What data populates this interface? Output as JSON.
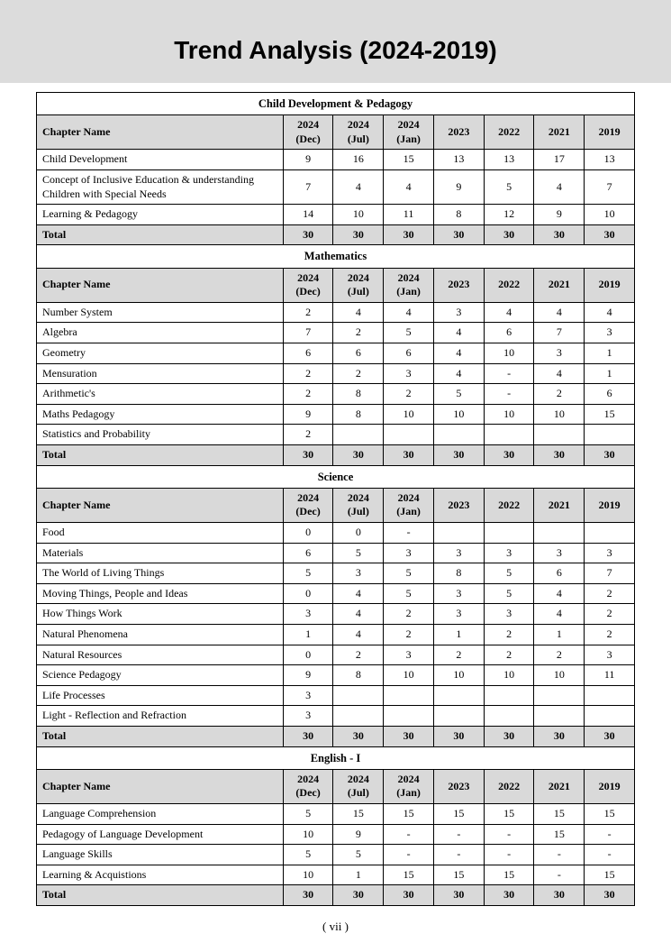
{
  "page_title": "Trend Analysis (2024-2019)",
  "page_number": "( vii )",
  "columns": [
    "Chapter Name",
    "2024 (Dec)",
    "2024 (Jul)",
    "2024 (Jan)",
    "2023",
    "2022",
    "2021",
    "2019"
  ],
  "sections": [
    {
      "title": "Child Development & Pedagogy",
      "rows": [
        {
          "name": "Child Development",
          "vals": [
            "9",
            "16",
            "15",
            "13",
            "13",
            "17",
            "13"
          ]
        },
        {
          "name": "Concept of Inclusive Education & understanding Children with Special Needs",
          "vals": [
            "7",
            "4",
            "4",
            "9",
            "5",
            "4",
            "7"
          ]
        },
        {
          "name": "Learning & Pedagogy",
          "vals": [
            "14",
            "10",
            "11",
            "8",
            "12",
            "9",
            "10"
          ]
        }
      ],
      "total": [
        "30",
        "30",
        "30",
        "30",
        "30",
        "30",
        "30"
      ]
    },
    {
      "title": "Mathematics",
      "rows": [
        {
          "name": "Number System",
          "vals": [
            "2",
            "4",
            "4",
            "3",
            "4",
            "4",
            "4"
          ]
        },
        {
          "name": "Algebra",
          "vals": [
            "7",
            "2",
            "5",
            "4",
            "6",
            "7",
            "3"
          ]
        },
        {
          "name": "Geometry",
          "vals": [
            "6",
            "6",
            "6",
            "4",
            "10",
            "3",
            "1"
          ]
        },
        {
          "name": "Mensuration",
          "vals": [
            "2",
            "2",
            "3",
            "4",
            "-",
            "4",
            "1"
          ]
        },
        {
          "name": "Arithmetic's",
          "vals": [
            "2",
            "8",
            "2",
            "5",
            "-",
            "2",
            "6"
          ]
        },
        {
          "name": "Maths Pedagogy",
          "vals": [
            "9",
            "8",
            "10",
            "10",
            "10",
            "10",
            "15"
          ]
        },
        {
          "name": "Statistics and Probability",
          "vals": [
            "2",
            "",
            "",
            "",
            "",
            "",
            ""
          ]
        }
      ],
      "total": [
        "30",
        "30",
        "30",
        "30",
        "30",
        "30",
        "30"
      ]
    },
    {
      "title": "Science",
      "rows": [
        {
          "name": "Food",
          "vals": [
            "0",
            "0",
            "-",
            "",
            "",
            "",
            ""
          ]
        },
        {
          "name": "Materials",
          "vals": [
            "6",
            "5",
            "3",
            "3",
            "3",
            "3",
            "3"
          ]
        },
        {
          "name": "The World of Living Things",
          "vals": [
            "5",
            "3",
            "5",
            "8",
            "5",
            "6",
            "7"
          ]
        },
        {
          "name": "Moving Things, People and Ideas",
          "vals": [
            "0",
            "4",
            "5",
            "3",
            "5",
            "4",
            "2"
          ]
        },
        {
          "name": "How Things Work",
          "vals": [
            "3",
            "4",
            "2",
            "3",
            "3",
            "4",
            "2"
          ]
        },
        {
          "name": "Natural Phenomena",
          "vals": [
            "1",
            "4",
            "2",
            "1",
            "2",
            "1",
            "2"
          ]
        },
        {
          "name": "Natural Resources",
          "vals": [
            "0",
            "2",
            "3",
            "2",
            "2",
            "2",
            "3"
          ]
        },
        {
          "name": "Science Pedagogy",
          "vals": [
            "9",
            "8",
            "10",
            "10",
            "10",
            "10",
            "11"
          ]
        },
        {
          "name": "Life Processes",
          "vals": [
            "3",
            "",
            "",
            "",
            "",
            "",
            ""
          ]
        },
        {
          "name": "Light - Reflection and Refraction",
          "vals": [
            "3",
            "",
            "",
            "",
            "",
            "",
            ""
          ]
        }
      ],
      "total": [
        "30",
        "30",
        "30",
        "30",
        "30",
        "30",
        "30"
      ]
    },
    {
      "title": "English - I",
      "rows": [
        {
          "name": "Language Comprehension",
          "vals": [
            "5",
            "15",
            "15",
            "15",
            "15",
            "15",
            "15"
          ]
        },
        {
          "name": "Pedagogy of Language Development",
          "vals": [
            "10",
            "9",
            "-",
            "-",
            "-",
            "15",
            "-"
          ]
        },
        {
          "name": "Language Skills",
          "vals": [
            "5",
            "5",
            "-",
            "-",
            "-",
            "-",
            "-"
          ]
        },
        {
          "name": "Learning & Acquistions",
          "vals": [
            "10",
            "1",
            "15",
            "15",
            "15",
            "-",
            "15"
          ]
        }
      ],
      "total": [
        "30",
        "30",
        "30",
        "30",
        "30",
        "30",
        "30"
      ]
    }
  ],
  "total_label": "Total",
  "styling": {
    "header_band_bg": "#dcdcdc",
    "table_header_bg": "#d9d9d9",
    "border_color": "#000000",
    "title_fontsize": 28,
    "body_fontsize": 12
  }
}
